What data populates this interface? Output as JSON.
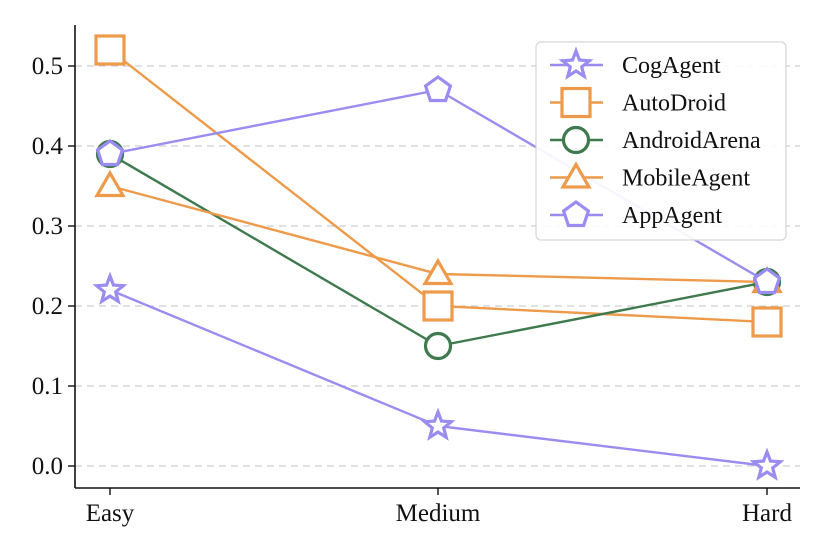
{
  "chart_data": {
    "type": "line",
    "title": "",
    "xlabel": "",
    "ylabel": "",
    "categories": [
      "Easy",
      "Medium",
      "Hard"
    ],
    "ylim": [
      0,
      0.55
    ],
    "yticks": [
      "0.0",
      "0.1",
      "0.2",
      "0.3",
      "0.4",
      "0.5"
    ],
    "grid": "horizontal dashed",
    "legend_position": "top-right",
    "series": [
      {
        "name": "CogAgent",
        "marker": "star",
        "color": "#9a8cf0",
        "values": [
          0.22,
          0.05,
          0.0
        ]
      },
      {
        "name": "AutoDroid",
        "marker": "square",
        "color": "#ed9a4a",
        "values": [
          0.52,
          0.2,
          0.18
        ]
      },
      {
        "name": "AndroidArena",
        "marker": "circle",
        "color": "#3f7a4f",
        "values": [
          0.39,
          0.15,
          0.23
        ]
      },
      {
        "name": "MobileAgent",
        "marker": "triangle",
        "color": "#ed9a4a",
        "values": [
          0.35,
          0.24,
          0.23
        ]
      },
      {
        "name": "AppAgent",
        "marker": "pentagon",
        "color": "#9a8cf0",
        "values": [
          0.39,
          0.47,
          0.23
        ]
      }
    ]
  }
}
